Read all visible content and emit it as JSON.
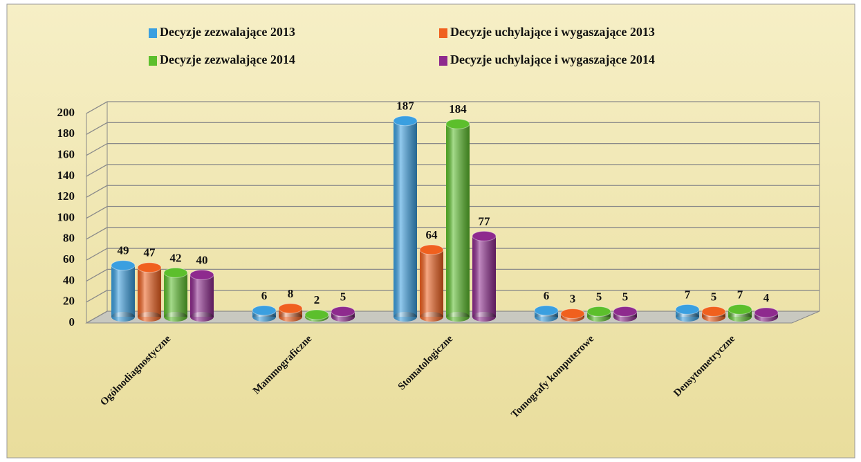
{
  "chart_data": {
    "type": "bar",
    "categories": [
      "Ogólnodiagnostyczne",
      "Mammograficzne",
      "Stomatologiczne",
      "Tomografy komputerowe",
      "Densytometryczne"
    ],
    "series": [
      {
        "name": "Decyzje zezwalające 2013",
        "color": "#3a9fe0",
        "values": [
          49,
          6,
          187,
          6,
          7
        ]
      },
      {
        "name": "Decyzje uchylające i wygaszające 2013",
        "color": "#f0601e",
        "values": [
          47,
          8,
          64,
          3,
          5
        ]
      },
      {
        "name": "Decyzje zezwalające 2014",
        "color": "#5cbf2c",
        "values": [
          42,
          2,
          184,
          5,
          7
        ]
      },
      {
        "name": "Decyzje uchylające i wygaszające 2014",
        "color": "#8e2a8e",
        "values": [
          40,
          5,
          77,
          5,
          4
        ]
      }
    ],
    "ylim": [
      0,
      200
    ],
    "yticks": [
      0,
      20,
      40,
      60,
      80,
      100,
      120,
      140,
      160,
      180,
      200
    ],
    "grid": true
  }
}
